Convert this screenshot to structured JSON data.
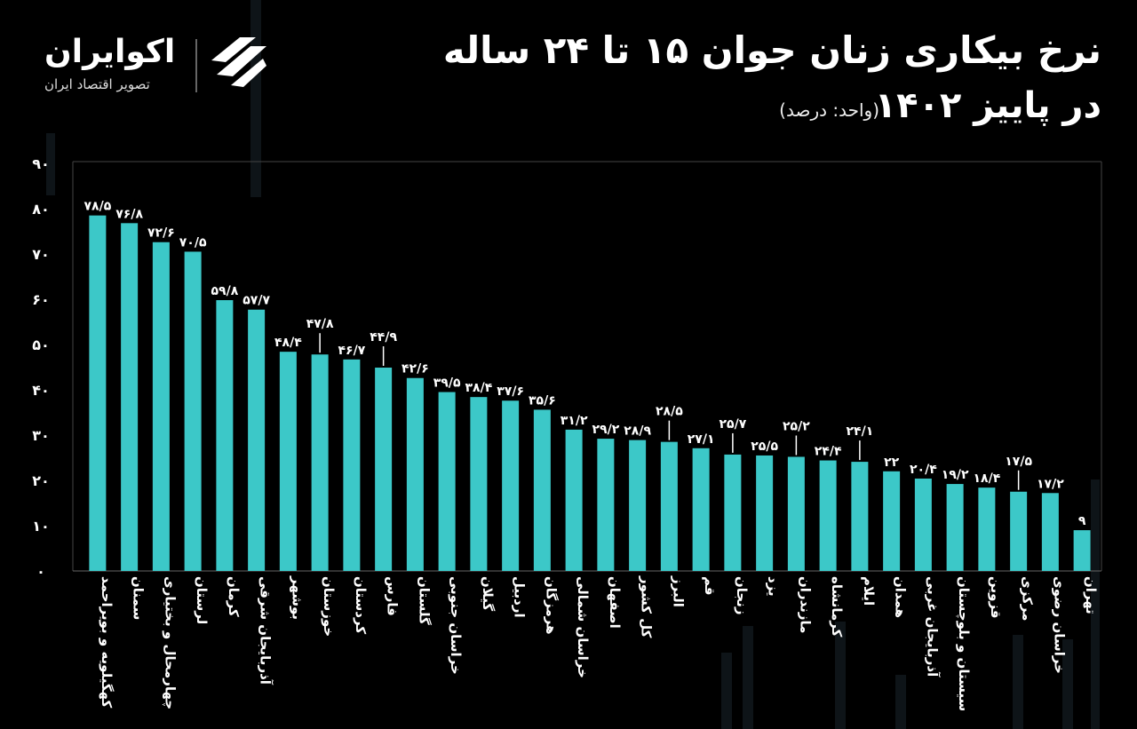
{
  "header": {
    "title_line1": "نرخ بیکاری زنان جوان ۱۵ تا ۲۴ ساله",
    "title_line2": "در پاییز ۱۴۰۲",
    "unit": "(واحد: درصد)"
  },
  "brand": {
    "name": "اکوایران",
    "tagline": "تصویر اقتصاد ایران",
    "logo_icon": "ecoiran-logo-icon"
  },
  "colors": {
    "bar": "#3cc8c8",
    "background": "#000000",
    "text": "#ffffff"
  },
  "chart_data": {
    "type": "bar",
    "title": "نرخ بیکاری زنان جوان ۱۵ تا ۲۴ ساله در پاییز ۱۴۰۲",
    "ylabel": "(واحد: درصد)",
    "ylim": [
      0,
      90
    ],
    "yticks": [
      0,
      10,
      20,
      30,
      40,
      50,
      60,
      70,
      80,
      90
    ],
    "ytick_labels": [
      "۰",
      "۱۰",
      "۲۰",
      "۳۰",
      "۴۰",
      "۵۰",
      "۶۰",
      "۷۰",
      "۸۰",
      "۹۰"
    ],
    "grid": false,
    "categories": [
      "کهگیلویه و بویراحمد",
      "سمنان",
      "چهارمحال و بختیاری",
      "لرستان",
      "کرمان",
      "آذربایجان شرقی",
      "بوشهر",
      "خوزستان",
      "کردستان",
      "فارس",
      "گلستان",
      "خراسان جنوبی",
      "گیلان",
      "اردبیل",
      "هرمزگان",
      "خراسان شمالی",
      "اصفهان",
      "کل کشور",
      "البرز",
      "قم",
      "زنجان",
      "یزد",
      "مازندران",
      "کرمانشاه",
      "ایلام",
      "همدان",
      "آذربایجان غربی",
      "سیستان و بلوچستان",
      "قزوین",
      "مرکزی",
      "خراسان رضوی",
      "تهران"
    ],
    "values": [
      78.5,
      76.8,
      72.6,
      70.5,
      59.8,
      57.7,
      48.4,
      47.8,
      46.7,
      44.9,
      42.6,
      39.5,
      38.4,
      37.6,
      35.6,
      31.2,
      29.2,
      28.9,
      28.5,
      27.1,
      25.7,
      25.5,
      25.2,
      24.4,
      24.1,
      22,
      20.4,
      19.2,
      18.4,
      17.5,
      17.2,
      9
    ],
    "value_labels": [
      "۷۸/۵",
      "۷۶/۸",
      "۷۲/۶",
      "۷۰/۵",
      "۵۹/۸",
      "۵۷/۷",
      "۴۸/۴",
      "۴۷/۸",
      "۴۶/۷",
      "۴۴/۹",
      "۴۲/۶",
      "۳۹/۵",
      "۳۸/۴",
      "۳۷/۶",
      "۳۵/۶",
      "۳۱/۲",
      "۲۹/۲",
      "۲۸/۹",
      "۲۸/۵",
      "۲۷/۱",
      "۲۵/۷",
      "۲۵/۵",
      "۲۵/۲",
      "۲۴/۴",
      "۲۴/۱",
      "۲۲",
      "۲۰/۴",
      "۱۹/۲",
      "۱۸/۴",
      "۱۷/۵",
      "۱۷/۲",
      "۹"
    ]
  }
}
